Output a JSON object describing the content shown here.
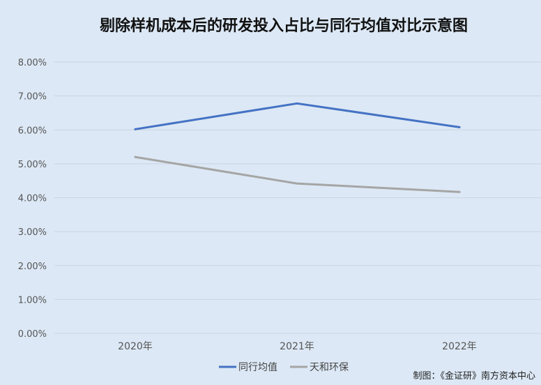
{
  "chart_data": {
    "type": "line",
    "title": "剔除样机成本后的研发投入占比与同行均值对比示意图",
    "categories": [
      "2020年",
      "2021年",
      "2022年"
    ],
    "ylim": [
      0,
      8
    ],
    "yticks": [
      "0.00%",
      "1.00%",
      "2.00%",
      "3.00%",
      "4.00%",
      "5.00%",
      "6.00%",
      "7.00%",
      "8.00%"
    ],
    "grid": true,
    "legend_position": "bottom",
    "series": [
      {
        "name": "同行均值",
        "values": [
          6.02,
          6.78,
          6.08
        ],
        "color": "#4472c4"
      },
      {
        "name": "天和环保",
        "values": [
          5.2,
          4.42,
          4.17
        ],
        "color": "#a5a5a5"
      }
    ]
  },
  "footer": {
    "credit": "制图：《金证研》南方资本中心"
  },
  "colors": {
    "background": "#dce8f5",
    "grid": "#c9d4e0"
  }
}
